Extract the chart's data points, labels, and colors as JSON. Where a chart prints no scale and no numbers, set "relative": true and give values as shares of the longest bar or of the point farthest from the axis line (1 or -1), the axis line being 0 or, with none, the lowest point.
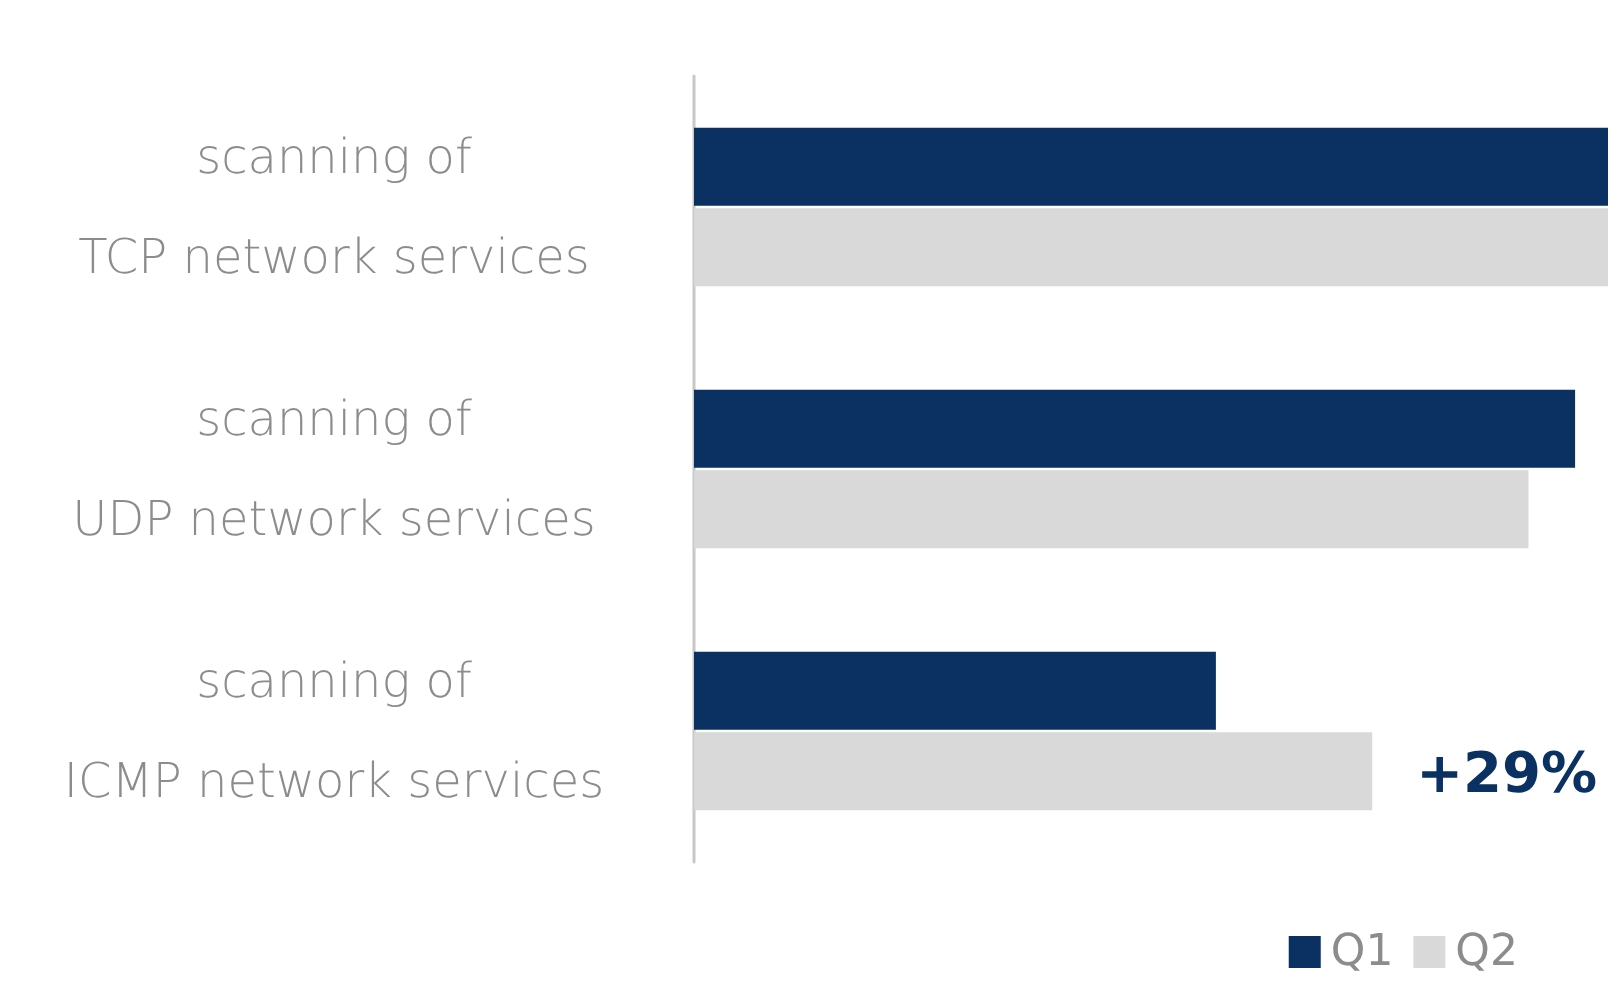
{
  "chart_data": {
    "type": "bar",
    "orientation": "horizontal",
    "relative": true,
    "categories": [
      "scanning of\nTCP network services",
      "scanning of\nUDP network services",
      "scanning of\nICMP network services"
    ],
    "series": [
      {
        "name": "Q1",
        "color": "#0a3161",
        "values": [
          1,
          0.964,
          0.571
        ]
      },
      {
        "name": "Q2",
        "color": "#d9d9d9",
        "values": [
          1,
          0.913,
          0.742
        ]
      }
    ],
    "annotations": [
      {
        "text": "+29%",
        "x": 0.742,
        "y": "scanning of\nICMP network services"
      }
    ],
    "legend": "bottom right"
  }
}
